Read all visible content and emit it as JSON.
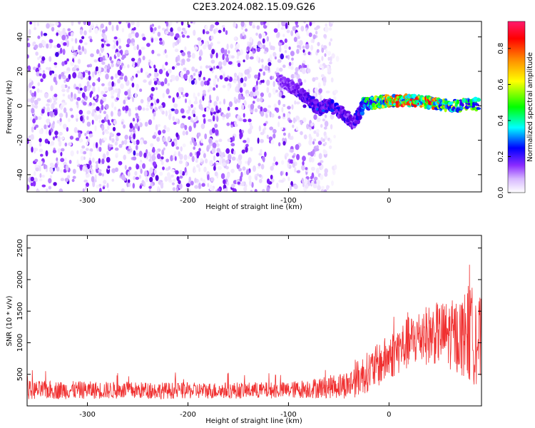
{
  "title": "C2E3.2024.082.15.09.G26",
  "chart_data": [
    {
      "type": "heatmap",
      "xlabel": "Height of straight line (km)",
      "ylabel": "Frequency (Hz)",
      "xlim": [
        -360,
        92
      ],
      "ylim": [
        -50,
        49
      ],
      "x_ticks": [
        -300,
        -200,
        -100,
        0
      ],
      "y_ticks": [
        -40,
        -20,
        0,
        20,
        40
      ],
      "colorbar": {
        "label": "Normalized spectral amplitude",
        "range": [
          0,
          0.95
        ],
        "ticks": [
          "0.0",
          "0.2",
          "0.4",
          "0.6",
          "0.8"
        ],
        "colors": [
          "#ffffff",
          "#d7b8ff",
          "#8a2bff",
          "#5a00e0",
          "#0000ff",
          "#00ffff",
          "#00ff00",
          "#ffff00",
          "#ff8800",
          "#ff0000",
          "#ff1a6e"
        ]
      },
      "noise_band": {
        "x_range": [
          -360,
          -50
        ],
        "freq_range": [
          -50,
          49
        ],
        "typical_amplitude": 0.15
      },
      "signal_track": [
        {
          "x": -110,
          "freq": 16,
          "amp": 0.2
        },
        {
          "x": -95,
          "freq": 10,
          "amp": 0.3
        },
        {
          "x": -80,
          "freq": 4,
          "amp": 0.35
        },
        {
          "x": -70,
          "freq": -2,
          "amp": 0.4
        },
        {
          "x": -60,
          "freq": 1,
          "amp": 0.4
        },
        {
          "x": -45,
          "freq": -5,
          "amp": 0.35
        },
        {
          "x": -35,
          "freq": -10,
          "amp": 0.3
        },
        {
          "x": -25,
          "freq": 1,
          "amp": 0.5
        },
        {
          "x": -10,
          "freq": 2,
          "amp": 0.7
        },
        {
          "x": 0,
          "freq": 3,
          "amp": 0.8
        },
        {
          "x": 20,
          "freq": 3,
          "amp": 0.9
        },
        {
          "x": 40,
          "freq": 2,
          "amp": 0.85
        },
        {
          "x": 60,
          "freq": 0,
          "amp": 0.7
        },
        {
          "x": 90,
          "freq": 1,
          "amp": 0.6
        }
      ]
    },
    {
      "type": "line",
      "xlabel": "Height of straight line (km)",
      "ylabel": "SNR (10 * v/v)",
      "xlim": [
        -360,
        92
      ],
      "ylim": [
        0,
        2700
      ],
      "x_ticks": [
        -300,
        -200,
        -100,
        0
      ],
      "y_ticks": [
        500,
        1000,
        1500,
        2000,
        2500
      ],
      "color": "#f03030",
      "envelope": [
        {
          "x": -360,
          "mean": 250,
          "spread": 150
        },
        {
          "x": -300,
          "mean": 250,
          "spread": 140
        },
        {
          "x": -200,
          "mean": 240,
          "spread": 130
        },
        {
          "x": -100,
          "mean": 250,
          "spread": 130
        },
        {
          "x": -60,
          "mean": 300,
          "spread": 180
        },
        {
          "x": -40,
          "mean": 340,
          "spread": 230
        },
        {
          "x": -30,
          "mean": 450,
          "spread": 300
        },
        {
          "x": -10,
          "mean": 650,
          "spread": 350
        },
        {
          "x": 10,
          "mean": 900,
          "spread": 400
        },
        {
          "x": 30,
          "mean": 1100,
          "spread": 450
        },
        {
          "x": 50,
          "mean": 1150,
          "spread": 500
        },
        {
          "x": 70,
          "mean": 1100,
          "spread": 600
        },
        {
          "x": 80,
          "mean": 1150,
          "spread": 800
        },
        {
          "x": 92,
          "mean": 1000,
          "spread": 700
        }
      ]
    }
  ]
}
